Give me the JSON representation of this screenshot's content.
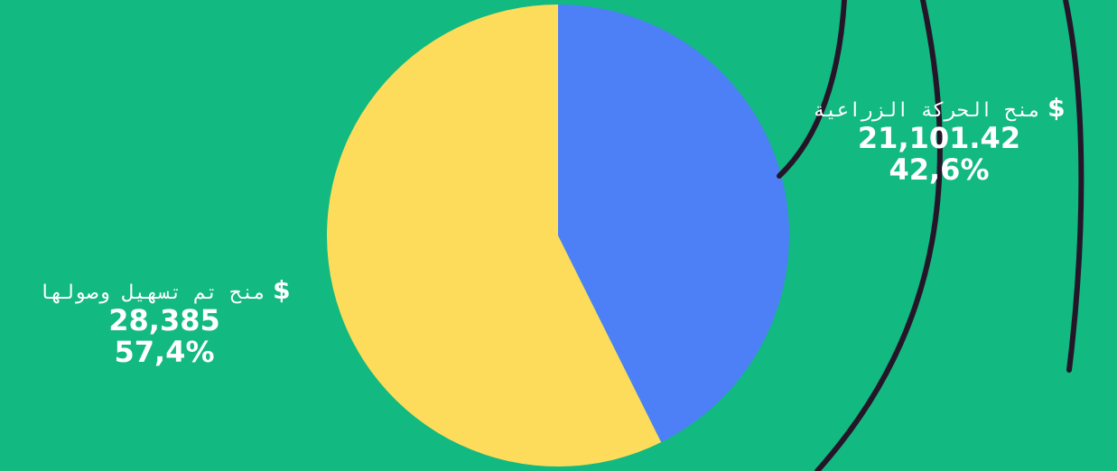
{
  "chart_data": {
    "type": "pie",
    "slices": [
      {
        "name": "منح الحركة الزراعية",
        "currency": "$",
        "value_label": "21,101.42",
        "value": 21101.42,
        "percent_label": "42,6%",
        "percent": 42.6,
        "color": "#4d80f6"
      },
      {
        "name": "منح تم تسهيل وصولها",
        "currency": "$",
        "value_label": "28,385",
        "value": 28385,
        "percent_label": "57,4%",
        "percent": 57.4,
        "color": "#fcdc5a"
      }
    ]
  },
  "colors": {
    "background": "#12b981",
    "decorative_lines": "#241628",
    "label_text": "#ffffff"
  }
}
